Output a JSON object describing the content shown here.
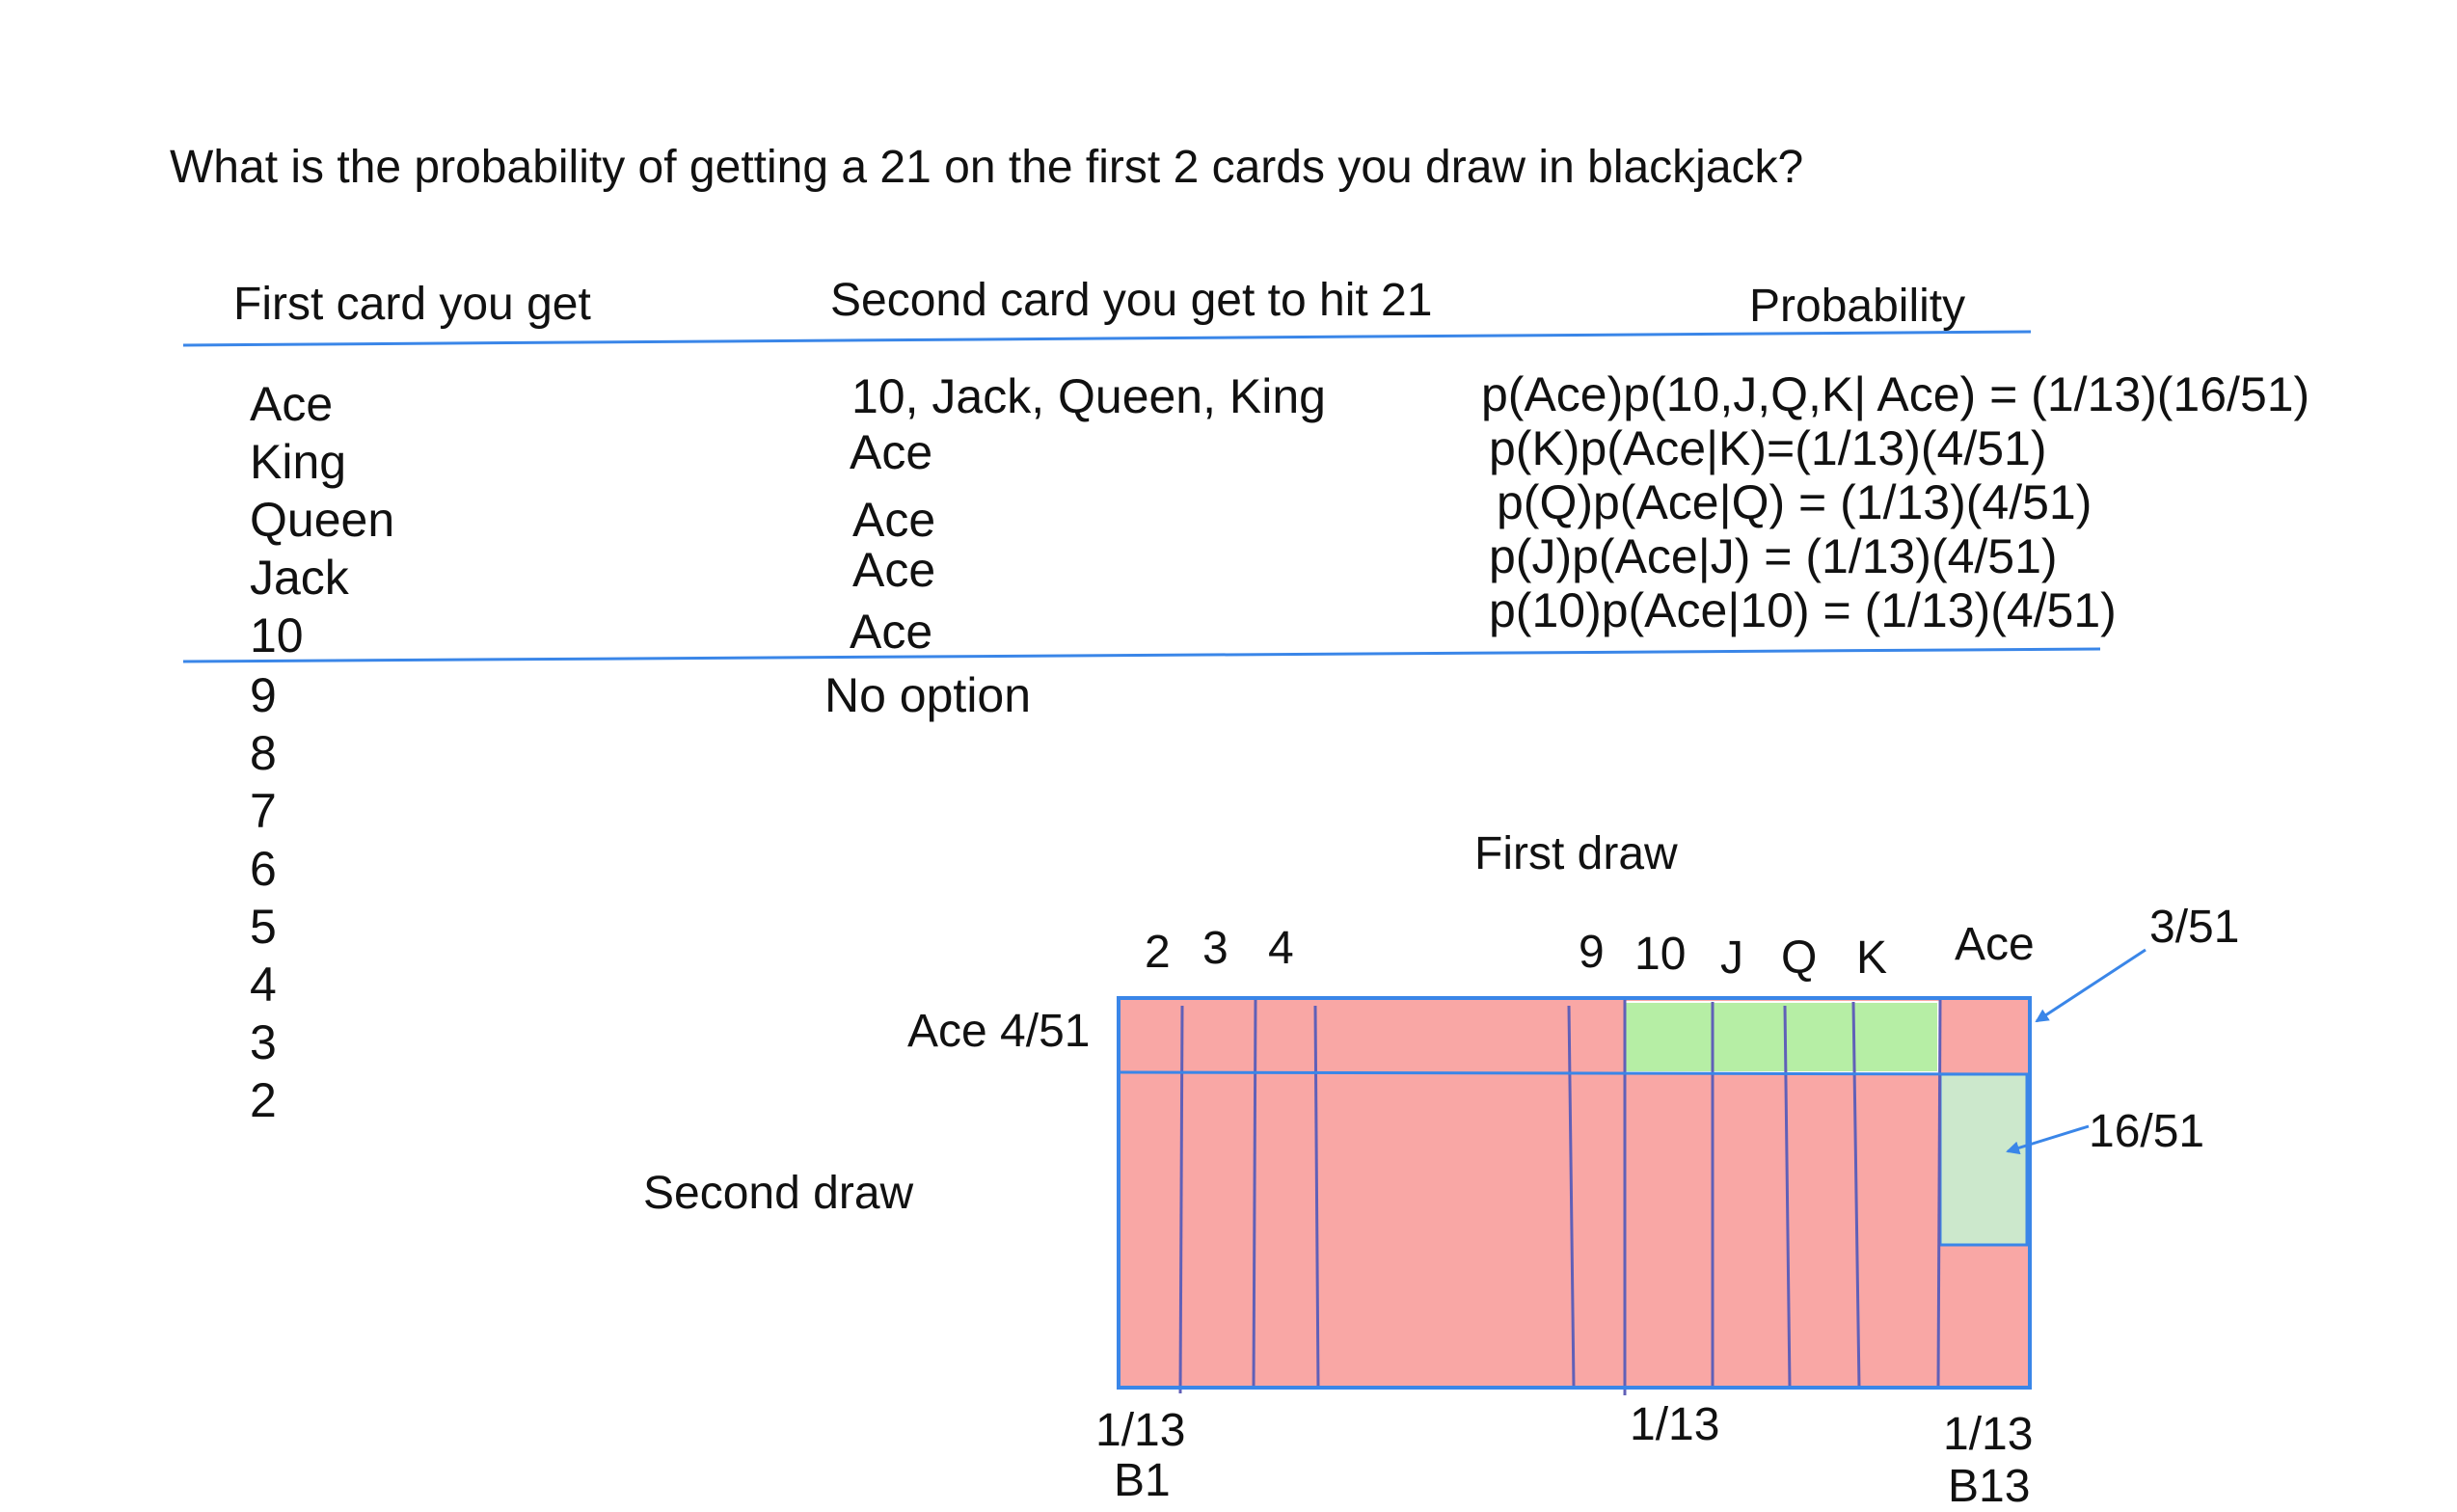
{
  "question": "What is the probability of getting a 21 on the first 2 cards you draw in blackjack?",
  "table": {
    "headers": {
      "first": "First card you get",
      "second": "Second card you get to hit 21",
      "probability": "Probability"
    },
    "winning_rows": [
      {
        "first": "Ace",
        "second": "10, Jack, Queen, King",
        "probability": "p(Ace)p(10,J,Q,K| Ace) = (1/13)(16/51)"
      },
      {
        "first": "King",
        "second": "Ace",
        "probability": "p(K)p(Ace|K)=(1/13)(4/51)"
      },
      {
        "first": "Queen",
        "second": "Ace",
        "probability": "p(Q)p(Ace|Q) = (1/13)(4/51)"
      },
      {
        "first": "Jack",
        "second": "Ace",
        "probability": "p(J)p(Ace|J) = (1/13)(4/51)"
      },
      {
        "first": "10",
        "second": "Ace",
        "probability": "p(10)p(Ace|10) = (1/13)(4/51)"
      }
    ],
    "other_first_cards": [
      "9",
      "8",
      "7",
      "6",
      "5",
      "4",
      "3",
      "2"
    ],
    "no_option": "No option"
  },
  "diagram": {
    "first_draw_label": "First draw",
    "second_draw_label": "Second draw",
    "top_labels": {
      "c2": "2",
      "c3": "3",
      "c4": "4",
      "c9": "9",
      "c10": "10",
      "cJ": "J",
      "cQ": "Q",
      "cK": "K",
      "cAce": "Ace"
    },
    "row_label": "Ace 4/51",
    "bottom_labels": {
      "b1_frac": "1/13",
      "b1_name": "B1",
      "mid_frac": "1/13",
      "b13_frac": "1/13",
      "b13_name": "B13"
    },
    "annotations": {
      "top_right": "3/51",
      "right": "16/51"
    },
    "colors": {
      "losing": "#f9a7a5",
      "winning": "#b6eea5",
      "ace_ace_win": "#cce8cc",
      "border": "#3a86e8",
      "divider": "#6060b8"
    }
  }
}
